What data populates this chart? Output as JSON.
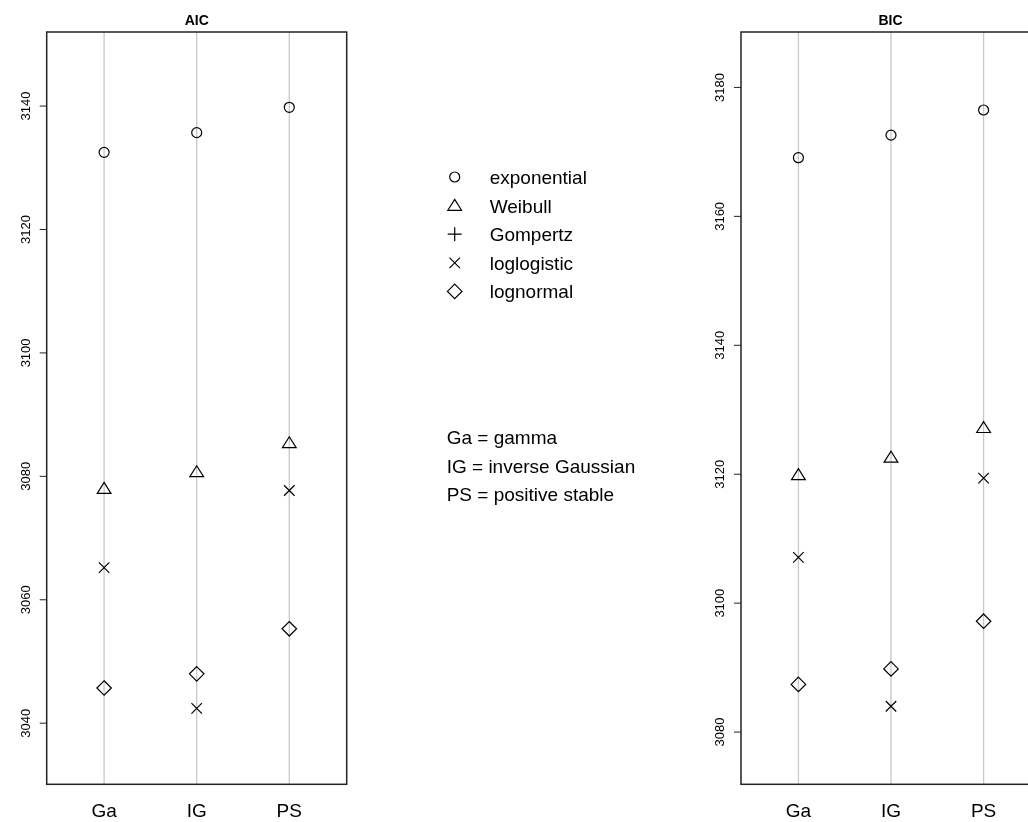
{
  "chart_data": [
    {
      "type": "scatter",
      "title": "AIC",
      "categories": [
        "Ga",
        "IG",
        "PS"
      ],
      "ylim": [
        3030.1,
        3152
      ],
      "yticks": [
        3040,
        3060,
        3080,
        3100,
        3120,
        3140
      ],
      "grid": "x",
      "legend": "right",
      "annotations": [
        "Ga = gamma",
        "IG = inverse Gaussian",
        "PS = positive stable"
      ],
      "series": [
        {
          "name": "exponential",
          "color": "#000000",
          "marker": "circle",
          "values": [
            3132.5,
            3135.7,
            3139.8
          ]
        },
        {
          "name": "Weibull",
          "color": "#000000",
          "marker": "triangle",
          "values": [
            3078,
            3080.7,
            3085.4
          ]
        },
        {
          "name": "Gompertz",
          "color": "#000000",
          "marker": "plus",
          "values": [
            null,
            null,
            null
          ]
        },
        {
          "name": "loglogistic",
          "color": "#000000",
          "marker": "cross",
          "values": [
            3065.2,
            3042.4,
            3077.7
          ]
        },
        {
          "name": "lognormal",
          "color": "#000000",
          "marker": "diamond",
          "values": [
            3045.7,
            3048,
            3055.3
          ]
        }
      ]
    },
    {
      "type": "scatter",
      "title": "BIC",
      "categories": [
        "Ga",
        "IG",
        "PS"
      ],
      "ylim": [
        3071.9,
        3188.6
      ],
      "yticks": [
        3080,
        3100,
        3120,
        3140,
        3160,
        3180
      ],
      "grid": "x",
      "series": [
        {
          "color": "#000000",
          "marker": "circle",
          "values": [
            3169.1,
            3172.6,
            3176.5
          ]
        },
        {
          "color": "#000000",
          "marker": "triangle",
          "values": [
            3119.9,
            3122.6,
            3127.2
          ]
        },
        {
          "color": "#000000",
          "marker": "cross",
          "values": [
            3107.1,
            3084,
            3119.4
          ]
        },
        {
          "color": "#000000",
          "marker": "diamond",
          "values": [
            3087.4,
            3089.8,
            3097.2
          ]
        }
      ]
    }
  ]
}
